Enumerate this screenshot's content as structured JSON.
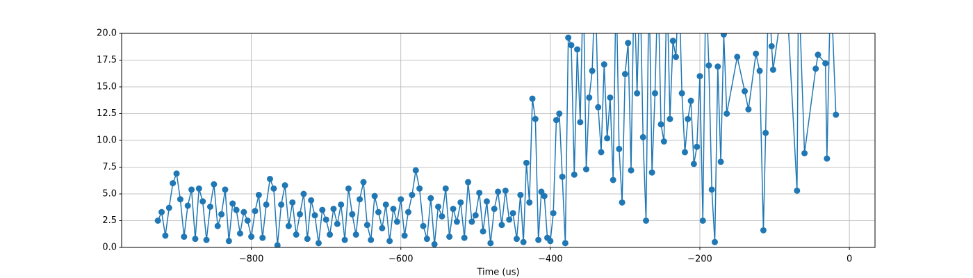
{
  "chart_data": {
    "type": "line",
    "xlabel": "Time (us)",
    "color": "#1f77b4",
    "grid": true,
    "xlim": [
      -973.5,
      34.3
    ],
    "ylim": [
      0,
      20
    ],
    "xticks": [
      {
        "value": -800,
        "label": "−800"
      },
      {
        "value": -600,
        "label": "−600"
      },
      {
        "value": -400,
        "label": "−400"
      },
      {
        "value": -200,
        "label": "−200"
      },
      0
    ],
    "yticks": [
      {
        "value": 0,
        "label": "0.0"
      },
      {
        "value": 2.5,
        "label": "2.5"
      },
      {
        "value": 5,
        "label": "5.0"
      },
      {
        "value": 7.5,
        "label": "7.5"
      },
      {
        "value": 10,
        "label": "10.0"
      },
      {
        "value": 12.5,
        "label": "12.5"
      },
      {
        "value": 15,
        "label": "15.0"
      },
      {
        "value": 17.5,
        "label": "17.5"
      },
      {
        "value": 20,
        "label": "20.0"
      }
    ],
    "x": [
      -925,
      -920,
      -915,
      -910,
      -905,
      -900,
      -895,
      -890,
      -885,
      -880,
      -875,
      -870,
      -865,
      -860,
      -855,
      -850,
      -845,
      -840,
      -835,
      -830,
      -825,
      -820,
      -815,
      -810,
      -805,
      -800,
      -795,
      -790,
      -785,
      -780,
      -775,
      -770,
      -765,
      -760,
      -755,
      -750,
      -745,
      -740,
      -735,
      -730,
      -725,
      -720,
      -715,
      -710,
      -705,
      -700,
      -695,
      -690,
      -685,
      -680,
      -675,
      -670,
      -665,
      -660,
      -655,
      -650,
      -645,
      -640,
      -635,
      -630,
      -625,
      -620,
      -615,
      -610,
      -605,
      -600,
      -595,
      -590,
      -585,
      -580,
      -575,
      -570,
      -565,
      -560,
      -555,
      -550,
      -545,
      -540,
      -535,
      -530,
      -525,
      -520,
      -515,
      -510,
      -505,
      -500,
      -495,
      -490,
      -485,
      -480,
      -475,
      -470,
      -465,
      -460,
      -455,
      -450,
      -445,
      -440,
      -436,
      -432,
      -428,
      -424,
      -420,
      -416,
      -412,
      -408,
      -404,
      -400,
      -396,
      -392,
      -388,
      -384,
      -380,
      -376,
      -372,
      -368,
      -364,
      -360,
      -356,
      -352,
      -348,
      -344,
      -340,
      -336,
      -332,
      -328,
      -324,
      -320,
      -316,
      -312,
      -308,
      -304,
      -300,
      -296,
      -292,
      -288,
      -284,
      -280,
      -276,
      -272,
      -268,
      -264,
      -260,
      -256,
      -252,
      -248,
      -244,
      -240,
      -236,
      -232,
      -228,
      -224,
      -220,
      -216,
      -212,
      -208,
      -204,
      -200,
      -196,
      -192,
      -188,
      -184,
      -180,
      -176,
      -172,
      -168,
      -164,
      -150,
      -140,
      -135,
      -125,
      -120,
      -115,
      -112,
      -108,
      -104,
      -102,
      -85,
      -70,
      -68,
      -60,
      -45,
      -42,
      -32,
      -30,
      -25,
      -18
    ],
    "values": [
      2.5,
      3.3,
      1.1,
      3.7,
      6.0,
      6.9,
      4.5,
      1.0,
      3.9,
      5.4,
      0.8,
      5.5,
      4.3,
      0.7,
      3.8,
      5.9,
      2.0,
      3.1,
      5.4,
      0.6,
      4.1,
      3.5,
      1.3,
      3.3,
      2.5,
      1.0,
      3.4,
      4.9,
      0.9,
      4.0,
      6.4,
      5.5,
      0.2,
      4.0,
      5.8,
      2.0,
      4.2,
      1.2,
      3.1,
      5.0,
      0.8,
      4.4,
      3.0,
      0.4,
      3.5,
      2.6,
      1.2,
      3.6,
      2.2,
      4.0,
      0.7,
      5.5,
      3.1,
      1.2,
      4.5,
      6.1,
      2.1,
      0.7,
      4.8,
      3.3,
      1.8,
      4.0,
      0.6,
      3.6,
      2.4,
      4.5,
      1.1,
      3.3,
      4.9,
      7.2,
      5.5,
      2.0,
      0.8,
      4.6,
      0.3,
      3.8,
      2.9,
      5.5,
      1.0,
      3.6,
      2.4,
      4.2,
      0.9,
      6.1,
      2.4,
      3.0,
      5.1,
      1.5,
      4.3,
      0.4,
      3.6,
      5.2,
      2.1,
      5.3,
      2.6,
      3.2,
      0.8,
      4.9,
      0.5,
      7.9,
      4.2,
      13.9,
      12.0,
      0.7,
      5.2,
      4.8,
      0.9,
      0.6,
      3.2,
      11.9,
      12.5,
      6.6,
      0.4,
      19.6,
      18.9,
      6.8,
      18.5,
      11.7,
      25,
      7.3,
      14,
      16.5,
      25,
      13.1,
      8.9,
      17.1,
      10.2,
      14,
      6.3,
      25,
      9.2,
      4.2,
      16.2,
      19.1,
      7.2,
      25,
      14.4,
      25,
      10.3,
      2.5,
      25,
      7.0,
      14.4,
      25,
      11.5,
      9.9,
      25,
      12.0,
      19.3,
      17.8,
      25,
      14.4,
      8.9,
      12.0,
      13.7,
      7.8,
      9.4,
      16.0,
      2.5,
      25,
      17.0,
      5.4,
      0.5,
      16.9,
      8.0,
      19.9,
      12.5,
      17.8,
      14.6,
      12.9,
      18.1,
      16.5,
      1.6,
      10.7,
      25,
      18.8,
      16.6,
      25,
      5.3,
      25,
      8.8,
      16.7,
      18.0,
      17.2,
      8.3,
      25,
      12.4
    ]
  }
}
